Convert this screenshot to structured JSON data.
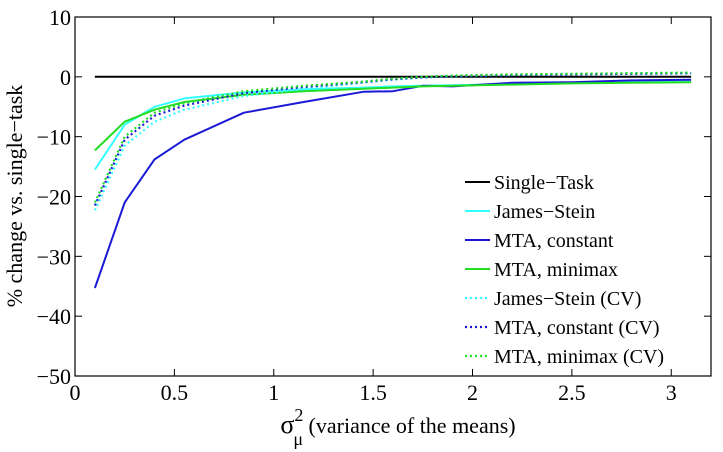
{
  "chart_data": {
    "type": "line",
    "title": "",
    "xlabel": "σ",
    "xlabel_subscript": "μ",
    "xlabel_superscript": "2",
    "xlabel_suffix": " (variance of the means)",
    "ylabel": "% change vs. single−task",
    "xlim": [
      0,
      3.2
    ],
    "ylim": [
      -50,
      10
    ],
    "xticks": [
      0,
      0.5,
      1,
      1.5,
      2,
      2.5,
      3
    ],
    "xtick_labels": [
      "0",
      "0.5",
      "1",
      "1.5",
      "2",
      "2.5",
      "3"
    ],
    "yticks": [
      -50,
      -40,
      -30,
      -20,
      -10,
      0,
      10
    ],
    "ytick_labels": [
      "−50",
      "−40",
      "−30",
      "−20",
      "−10",
      "0",
      "10"
    ],
    "grid": false,
    "legend_position": "lower-right",
    "series": [
      {
        "name": "Single−Task",
        "color": "#000000",
        "dash": "solid",
        "x": [
          0.1,
          0.25,
          0.4,
          0.55,
          0.85,
          1.15,
          1.45,
          1.6,
          1.75,
          1.9,
          2.2,
          2.5,
          2.8,
          3.1
        ],
        "y": [
          0,
          0,
          0,
          0,
          0,
          0,
          0,
          0,
          0,
          0,
          0,
          0,
          0,
          0
        ]
      },
      {
        "name": "James−Stein",
        "color": "#33ffff",
        "dash": "solid",
        "x": [
          0.1,
          0.25,
          0.4,
          0.55,
          0.85,
          1.15,
          1.45,
          1.6,
          1.75,
          1.9,
          2.2,
          2.5,
          2.8,
          3.1
        ],
        "y": [
          -15.5,
          -8,
          -5,
          -3.6,
          -2.6,
          -2.1,
          -1.8,
          -1.6,
          -1.5,
          -1.4,
          -1.2,
          -1.0,
          -0.9,
          -0.8
        ]
      },
      {
        "name": "MTA, constant",
        "color": "#1a1ad6",
        "dash": "solid",
        "x": [
          0.1,
          0.25,
          0.4,
          0.55,
          0.85,
          1.15,
          1.45,
          1.6,
          1.75,
          1.9,
          2.2,
          2.5,
          2.8,
          3.1
        ],
        "y": [
          -35.3,
          -21,
          -13.8,
          -10.5,
          -6.0,
          -4.2,
          -2.5,
          -2.4,
          -1.5,
          -1.6,
          -1.0,
          -0.9,
          -0.6,
          -0.5
        ]
      },
      {
        "name": "MTA, minimax",
        "color": "#22dd22",
        "dash": "solid",
        "x": [
          0.1,
          0.25,
          0.4,
          0.55,
          0.85,
          1.15,
          1.45,
          1.6,
          1.75,
          1.9,
          2.2,
          2.5,
          2.8,
          3.1
        ],
        "y": [
          -12.3,
          -7.5,
          -5.5,
          -4.2,
          -3.0,
          -2.4,
          -2.0,
          -1.8,
          -1.6,
          -1.5,
          -1.3,
          -1.1,
          -1.0,
          -0.9
        ]
      },
      {
        "name": "James−Stein (CV)",
        "color": "#33ffff",
        "dash": "dotted",
        "x": [
          0.1,
          0.25,
          0.4,
          0.55,
          0.85,
          1.15,
          1.45,
          1.6,
          1.75,
          1.9,
          2.2,
          2.5,
          2.8,
          3.1
        ],
        "y": [
          -22.3,
          -11.5,
          -7.5,
          -5.5,
          -3.2,
          -2.0,
          -1.0,
          -0.5,
          -0.1,
          0.1,
          0.3,
          0.4,
          0.5,
          0.6
        ]
      },
      {
        "name": "MTA, constant (CV)",
        "color": "#1a1ad6",
        "dash": "dotted",
        "x": [
          0.1,
          0.25,
          0.4,
          0.55,
          0.85,
          1.15,
          1.45,
          1.6,
          1.75,
          1.9,
          2.2,
          2.5,
          2.8,
          3.1
        ],
        "y": [
          -21.5,
          -10.5,
          -6.5,
          -4.8,
          -2.7,
          -1.7,
          -0.9,
          -0.4,
          -0.1,
          0.1,
          0.3,
          0.4,
          0.5,
          0.6
        ]
      },
      {
        "name": "MTA, minimax (CV)",
        "color": "#22dd22",
        "dash": "dotted",
        "x": [
          0.1,
          0.25,
          0.4,
          0.55,
          0.85,
          1.15,
          1.45,
          1.6,
          1.75,
          1.9,
          2.2,
          2.5,
          2.8,
          3.1
        ],
        "y": [
          -21.0,
          -10.0,
          -6.0,
          -4.4,
          -2.4,
          -1.5,
          -0.8,
          -0.3,
          0.0,
          0.2,
          0.4,
          0.5,
          0.6,
          0.7
        ]
      }
    ]
  }
}
